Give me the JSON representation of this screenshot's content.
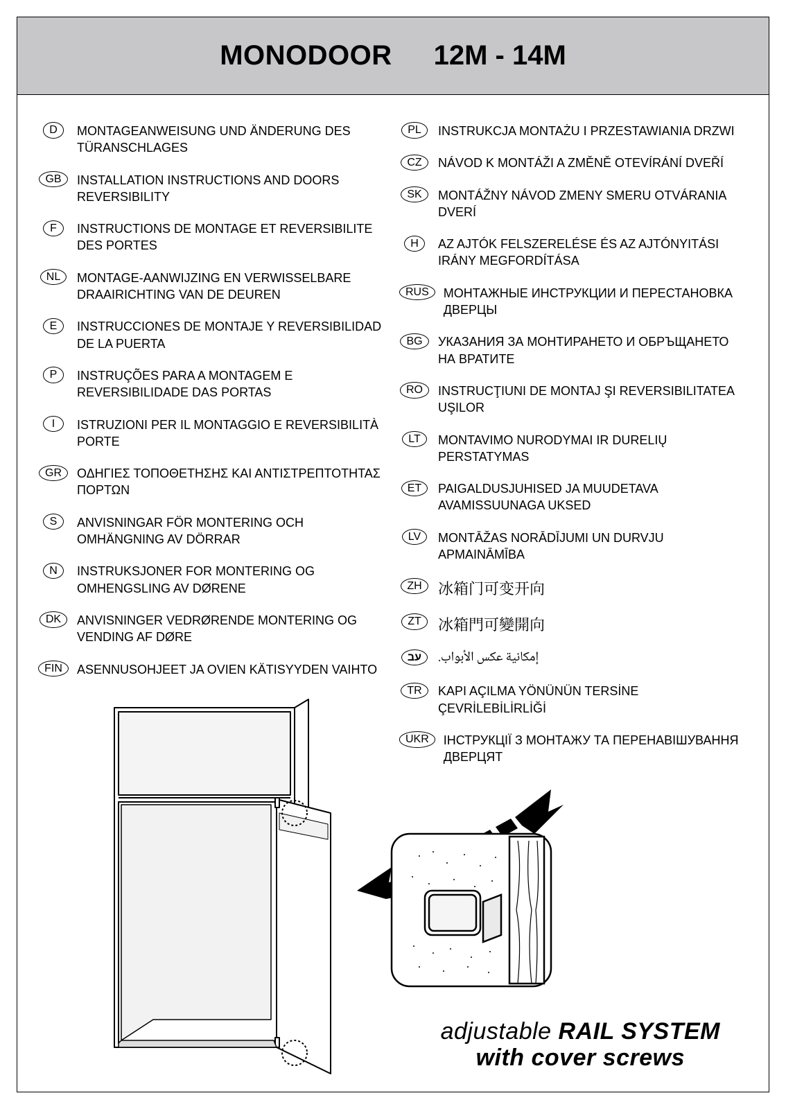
{
  "header": {
    "title_left": "MONODOOR",
    "title_right": "12M - 14M"
  },
  "columns": {
    "left": [
      {
        "code": "D",
        "text": "MONTAGEANWEISUNG UND ÄNDERUNG DES TÜRANSCHLAGES"
      },
      {
        "code": "GB",
        "text": "INSTALLATION INSTRUCTIONS AND DOORS REVERSIBILITY"
      },
      {
        "code": "F",
        "text": "INSTRUCTIONS DE MONTAGE ET REVERSIBILITE DES PORTES"
      },
      {
        "code": "NL",
        "text": "MONTAGE-AANWIJZING EN VERWISSELBARE DRAAIRICHTING VAN DE DEUREN"
      },
      {
        "code": "E",
        "text": "INSTRUCCIONES DE MONTAJE Y REVERSIBILIDAD DE LA PUERTA"
      },
      {
        "code": "P",
        "text": "INSTRUÇÕES PARA A MONTAGEM E REVERSIBILIDADE DAS PORTAS"
      },
      {
        "code": "I",
        "text": "ISTRUZIONI PER IL MONTAGGIO E REVERSIBILITÀ PORTE"
      },
      {
        "code": "GR",
        "text": "ΟΔΗΓΙΕΣ ΤΟΠΟΘΕΤΗΣΗΣ ΚΑΙ ΑΝΤΙΣΤΡΕΠΤΟΤΗΤΑΣ ΠΟΡΤΩΝ"
      },
      {
        "code": "S",
        "text": "ANVISNINGAR FÖR MONTERING OCH OMHÄNGNING AV DÖRRAR"
      },
      {
        "code": "N",
        "text": "INSTRUKSJONER FOR MONTERING OG OMHENGSLING AV DØRENE"
      },
      {
        "code": "DK",
        "text": "ANVISNINGER VEDRØRENDE MONTERING OG VENDING AF DØRE"
      },
      {
        "code": "FIN",
        "text": "ASENNUSOHJEET JA OVIEN KÄTISYYDEN VAIHTO"
      }
    ],
    "right": [
      {
        "code": "PL",
        "text": "INSTRUKCJA MONTAŻU I PRZESTAWIANIA DRZWI"
      },
      {
        "code": "CZ",
        "text": "NÁVOD K MONTÁŽI A ZMĚNĚ OTEVÍRÁNÍ DVEŘÍ"
      },
      {
        "code": "SK",
        "text": "MONTÁŽNY NÁVOD ZMENY SMERU OTVÁRANIA DVERÍ"
      },
      {
        "code": "H",
        "text": "AZ AJTÓK FELSZERELÉSE ÉS AZ AJTÓNYITÁSI IRÁNY MEGFORDÍTÁSA"
      },
      {
        "code": "RUS",
        "text": "МОНТАЖНЫЕ ИНСТРУКЦИИ И ПЕРЕСТАНОВКА ДВЕРЦЫ"
      },
      {
        "code": "BG",
        "text": "УКАЗАНИЯ ЗА МОНТИРАНЕТО И ОБРЪЩАНЕТО НА ВРАТИТЕ"
      },
      {
        "code": "RO",
        "text": "INSTRUCŢIUNI DE MONTAJ ŞI REVERSIBILITATEA UŞILOR"
      },
      {
        "code": "LT",
        "text": "MONTAVIMO NURODYMAI IR DURELIŲ PERSTATYMAS"
      },
      {
        "code": "ET",
        "text": "PAIGALDUSJUHISED JA MUUDETAVA AVAMISSUUNAGA UKSED"
      },
      {
        "code": "LV",
        "text": "MONTĀŽAS NORĀDĪJUMI UN DURVJU APMAINĀMĪBA"
      },
      {
        "code": "ZH",
        "text": "冰箱门可变开向",
        "style": "cjk"
      },
      {
        "code": "ZT",
        "text": "冰箱門可變開向",
        "style": "cjk"
      },
      {
        "code": "עב",
        "text": "إمكانية عكس الأبواب.",
        "style": "rtl",
        "code_bold": true
      },
      {
        "code": "TR",
        "text": "KAPI AÇILMA YÖNÜNÜN TERSİNE ÇEVRİLEBİLİRLİĞİ"
      },
      {
        "code": "UKR",
        "text": "ІНСТРУКЦІЇ З МОНТАЖУ ТА ПЕРЕНАВІШУВАННЯ ДВЕРЦЯТ"
      }
    ]
  },
  "caption": {
    "line1_adj": "adjustable",
    "line1_rest": " RAIL SYSTEM",
    "line2": "with cover screws"
  },
  "illustration": {
    "type": "diagram",
    "stroke": "#000000",
    "stroke_width": 2,
    "dashed_circle_dash": "3 3"
  }
}
